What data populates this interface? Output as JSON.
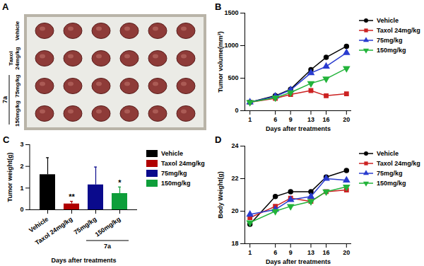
{
  "chart_data": [
    {
      "type": "photo",
      "panel": "A",
      "row_labels": [
        "Vehicle",
        "Taxol 24mg/kg",
        "75mg/kg",
        "150mg/kg"
      ],
      "groups": [
        {
          "label": "7a",
          "rows": [
            "75mg/kg",
            "150mg/kg"
          ]
        }
      ],
      "tumors_per_row": [
        6,
        6,
        6,
        6
      ]
    },
    {
      "type": "line",
      "panel": "B",
      "x": [
        1,
        6,
        9,
        13,
        16,
        20
      ],
      "xlim": [
        0,
        21
      ],
      "xticks": [
        1,
        6,
        9,
        13,
        16,
        20
      ],
      "ylim": [
        0,
        1500
      ],
      "yticks": [
        0,
        500,
        1000,
        1500
      ],
      "x_label": "Days after treatments",
      "y_label": "Tumor volume(mm³)",
      "legend": "right",
      "series": [
        {
          "name": "Vehicle",
          "color": "#000000",
          "marker": "circle",
          "values": [
            130,
            230,
            330,
            630,
            820,
            990
          ]
        },
        {
          "name": "Taxol 24mg/kg",
          "color": "#cc2222",
          "marker": "square",
          "values": [
            130,
            190,
            250,
            310,
            230,
            260
          ]
        },
        {
          "name": "75mg/kg",
          "color": "#2a3ccf",
          "marker": "triangle",
          "values": [
            130,
            220,
            320,
            580,
            680,
            890
          ]
        },
        {
          "name": "150mg/kg",
          "color": "#22b33a",
          "marker": "triangle-down",
          "values": [
            130,
            200,
            280,
            420,
            490,
            650
          ]
        }
      ]
    },
    {
      "type": "bar",
      "panel": "C",
      "categories": [
        "Vehicle",
        "Taxol 24mg/kg",
        "75mg/kg",
        "150mg/kg"
      ],
      "values": [
        1.62,
        0.27,
        1.15,
        0.75
      ],
      "errors": [
        0.78,
        0.12,
        0.82,
        0.3
      ],
      "colors": [
        "#000000",
        "#b00000",
        "#0a0a8c",
        "#0e9e3a"
      ],
      "ylim": [
        0,
        3
      ],
      "yticks": [
        0,
        1,
        2,
        3
      ],
      "x_label": "Days after treatments",
      "y_label": "Tumor weight(g)",
      "legend": "right",
      "annotations": [
        {
          "category": "Taxol 24mg/kg",
          "text": "**"
        },
        {
          "category": "150mg/kg",
          "text": "*"
        }
      ],
      "groups": [
        {
          "label": "7a",
          "categories": [
            "75mg/kg",
            "150mg/kg"
          ]
        }
      ]
    },
    {
      "type": "line",
      "panel": "D",
      "x": [
        1,
        6,
        9,
        13,
        16,
        20
      ],
      "xlim": [
        0,
        21
      ],
      "xticks": [
        1,
        6,
        9,
        13,
        16,
        20
      ],
      "ylim": [
        18,
        24
      ],
      "yticks": [
        18,
        20,
        22,
        24
      ],
      "x_label": "Days after treatments",
      "y_label": "Body Weight(g)",
      "legend": "right",
      "series": [
        {
          "name": "Vehicle",
          "color": "#000000",
          "marker": "circle",
          "values": [
            19.2,
            20.9,
            21.2,
            21.2,
            22.1,
            22.5
          ]
        },
        {
          "name": "Taxol 24mg/kg",
          "color": "#cc2222",
          "marker": "square",
          "values": [
            19.6,
            20.3,
            20.8,
            20.6,
            21.2,
            21.3
          ]
        },
        {
          "name": "75mg/kg",
          "color": "#2a3ccf",
          "marker": "triangle",
          "values": [
            19.8,
            20.1,
            20.7,
            20.9,
            22.0,
            21.9
          ]
        },
        {
          "name": "150mg/kg",
          "color": "#22b33a",
          "marker": "triangle-down",
          "values": [
            19.3,
            20.0,
            20.3,
            20.6,
            21.2,
            21.5
          ]
        }
      ]
    }
  ]
}
